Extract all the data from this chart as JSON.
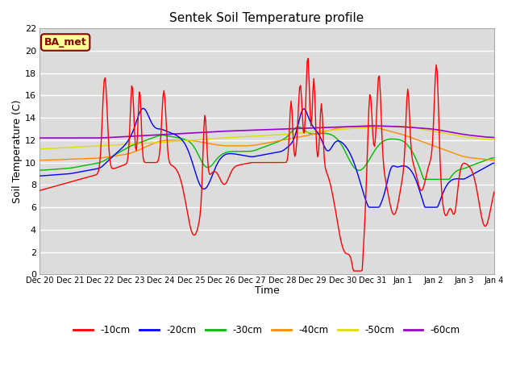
{
  "title": "Sentek Soil Temperature profile",
  "xlabel": "Time",
  "ylabel": "Soil Temperature (C)",
  "ylim": [
    0,
    22
  ],
  "yticks": [
    0,
    2,
    4,
    6,
    8,
    10,
    12,
    14,
    16,
    18,
    20,
    22
  ],
  "annotation_text": "BA_met",
  "annotation_color": "#8B0000",
  "annotation_bg": "#FFFF99",
  "fig_bg": "#FFFFFF",
  "plot_bg": "#DCDCDC",
  "grid_color": "#FFFFFF",
  "colors": {
    "-10cm": "#FF0000",
    "-20cm": "#0000FF",
    "-30cm": "#00BB00",
    "-40cm": "#FF8C00",
    "-50cm": "#DDDD00",
    "-60cm": "#9900CC"
  },
  "x_labels": [
    "Dec 20",
    "Dec 21",
    "Dec 22",
    "Dec 23",
    "Dec 24",
    "Dec 25",
    "Dec 26",
    "Dec 27",
    "Dec 28",
    "Dec 29",
    "Dec 30",
    "Dec 31",
    "Jan 1",
    "Jan 2",
    "Jan 3",
    "Jan 4"
  ],
  "n_points": 480
}
